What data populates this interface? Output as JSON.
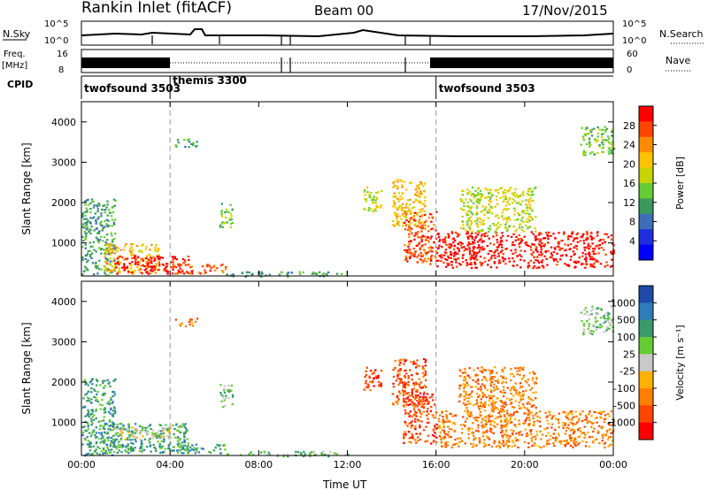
{
  "header": {
    "station": "Rankin Inlet (fitACF)",
    "beam": "Beam 00",
    "date": "17/Nov/2015"
  },
  "noise_panel": {
    "left_label": "N.Sky",
    "right_label": "N.Search",
    "left_ticks": [
      "10^5",
      "10^0"
    ],
    "right_ticks": [
      "10^5",
      "10^0"
    ]
  },
  "freq_panel": {
    "left_label_top": "Freq.",
    "left_label_bottom": "[MHz]",
    "right_label": "Nave",
    "left_ticks": [
      "16",
      "8"
    ],
    "right_ticks": [
      "60",
      "0"
    ]
  },
  "cpid_panel": {
    "label": "CPID",
    "segments": [
      {
        "name": "twofsound 3503",
        "start_hour": 0,
        "end_hour": 4
      },
      {
        "name": "themis 3300",
        "start_hour": 4,
        "end_hour": 16
      },
      {
        "name": "twofsound 3503",
        "start_hour": 16,
        "end_hour": 24
      }
    ]
  },
  "chart_data": [
    {
      "type": "heatmap",
      "name": "Power",
      "ylabel": "Slant Range [km]",
      "xlabel": "Time UT",
      "xlim": [
        0,
        24
      ],
      "ylim": [
        180,
        4500
      ],
      "x_ticks": [
        "00:00",
        "04:00",
        "08:00",
        "12:00",
        "16:00",
        "20:00",
        "00:00"
      ],
      "y_ticks": [
        1000,
        2000,
        3000,
        4000
      ],
      "colorbar_label": "Power [dB]",
      "colorbar_ticks": [
        "28",
        "24",
        "20",
        "16",
        "12",
        "8",
        "4"
      ],
      "colorbar_colors": [
        "#ff0000",
        "#ff4500",
        "#ff8c00",
        "#ffc400",
        "#c8d400",
        "#66cc33",
        "#3a9a5c",
        "#3d6fb8",
        "#1e2ee0",
        "#0000ff"
      ],
      "regions": [
        {
          "t0": 0.0,
          "t1": 1.5,
          "r0": 200,
          "r1": 2100,
          "level": 6
        },
        {
          "t0": 1.0,
          "t1": 3.5,
          "r0": 250,
          "r1": 1000,
          "level": 3
        },
        {
          "t0": 1.5,
          "t1": 4.8,
          "r0": 250,
          "r1": 700,
          "level": 0
        },
        {
          "t0": 4.0,
          "t1": 6.5,
          "r0": 250,
          "r1": 500,
          "level": 1
        },
        {
          "t0": 6.5,
          "t1": 12.0,
          "r0": 180,
          "r1": 300,
          "level": 6
        },
        {
          "t0": 6.2,
          "t1": 6.8,
          "r0": 1400,
          "r1": 2000,
          "level": 5
        },
        {
          "t0": 4.2,
          "t1": 5.2,
          "r0": 3400,
          "r1": 3600,
          "level": 6
        },
        {
          "t0": 12.7,
          "t1": 13.5,
          "r0": 1800,
          "r1": 2400,
          "level": 4
        },
        {
          "t0": 14.0,
          "t1": 15.5,
          "r0": 1400,
          "r1": 2600,
          "level": 3
        },
        {
          "t0": 14.5,
          "t1": 16.0,
          "r0": 500,
          "r1": 1800,
          "level": 1
        },
        {
          "t0": 16.0,
          "t1": 24.0,
          "r0": 400,
          "r1": 1300,
          "level": 0
        },
        {
          "t0": 17.0,
          "t1": 20.5,
          "r0": 1300,
          "r1": 2400,
          "level": 4
        },
        {
          "t0": 22.5,
          "t1": 24.0,
          "r0": 3200,
          "r1": 3900,
          "level": 5
        }
      ]
    },
    {
      "type": "heatmap",
      "name": "Velocity",
      "ylabel": "Slant Range [km]",
      "xlabel": "Time UT",
      "xlim": [
        0,
        24
      ],
      "ylim": [
        180,
        4500
      ],
      "x_ticks": [
        "00:00",
        "04:00",
        "08:00",
        "12:00",
        "16:00",
        "20:00",
        "00:00"
      ],
      "y_ticks": [
        1000,
        2000,
        3000,
        4000
      ],
      "colorbar_label": "Velocity [m s⁻¹]",
      "colorbar_ticks": [
        "1000",
        "500",
        "100",
        "25",
        "-25",
        "-100",
        "-500",
        "-1000"
      ],
      "colorbar_colors": [
        "#1f4aa8",
        "#2f7db8",
        "#3a9a6a",
        "#66cc33",
        "#c8c8c8",
        "#ffb000",
        "#ff7f00",
        "#ff4500",
        "#ff0000"
      ],
      "regions": [
        {
          "t0": 0.0,
          "t1": 1.5,
          "r0": 200,
          "r1": 2100,
          "level": 2
        },
        {
          "t0": 1.0,
          "t1": 4.8,
          "r0": 250,
          "r1": 1000,
          "level": 2
        },
        {
          "t0": 1.5,
          "t1": 4.0,
          "r0": 600,
          "r1": 900,
          "level": 4
        },
        {
          "t0": 4.0,
          "t1": 6.5,
          "r0": 250,
          "r1": 500,
          "level": 2
        },
        {
          "t0": 6.5,
          "t1": 12.0,
          "r0": 180,
          "r1": 300,
          "level": 3
        },
        {
          "t0": 6.2,
          "t1": 6.8,
          "r0": 1400,
          "r1": 2000,
          "level": 3
        },
        {
          "t0": 4.2,
          "t1": 5.2,
          "r0": 3400,
          "r1": 3600,
          "level": 6
        },
        {
          "t0": 12.7,
          "t1": 13.5,
          "r0": 1800,
          "r1": 2400,
          "level": 7
        },
        {
          "t0": 14.0,
          "t1": 15.5,
          "r0": 1400,
          "r1": 2600,
          "level": 7
        },
        {
          "t0": 14.5,
          "t1": 16.0,
          "r0": 500,
          "r1": 1800,
          "level": 7
        },
        {
          "t0": 16.0,
          "t1": 24.0,
          "r0": 400,
          "r1": 1300,
          "level": 6
        },
        {
          "t0": 17.0,
          "t1": 20.5,
          "r0": 1300,
          "r1": 2400,
          "level": 6
        },
        {
          "t0": 22.5,
          "t1": 24.0,
          "r0": 3200,
          "r1": 3900,
          "level": 3
        }
      ]
    }
  ]
}
